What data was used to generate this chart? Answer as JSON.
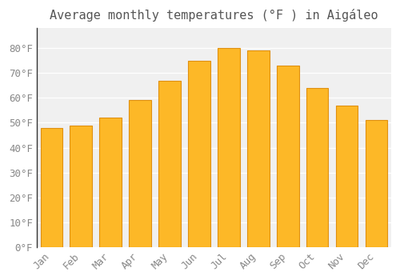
{
  "months": [
    "Jan",
    "Feb",
    "Mar",
    "Apr",
    "May",
    "Jun",
    "Jul",
    "Aug",
    "Sep",
    "Oct",
    "Nov",
    "Dec"
  ],
  "values": [
    48,
    49,
    52,
    59,
    67,
    75,
    80,
    79,
    73,
    64,
    57,
    51
  ],
  "bar_color": "#FDB827",
  "bar_edge_color": "#E09010",
  "title": "Average monthly temperatures (°F ) in Aigáleo",
  "ylim": [
    0,
    88
  ],
  "ytick_step": 10,
  "background_color": "#ffffff",
  "plot_bg_color": "#f0f0f0",
  "grid_color": "#ffffff",
  "title_fontsize": 11,
  "tick_fontsize": 9,
  "tick_color": "#888888",
  "title_color": "#555555"
}
